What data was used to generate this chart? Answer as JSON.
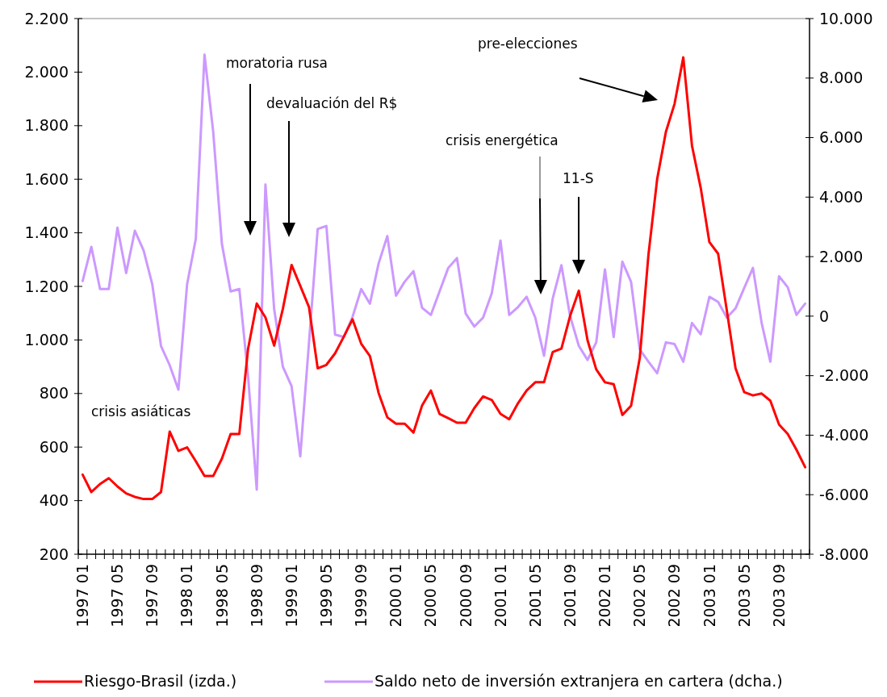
{
  "chart_data": {
    "type": "line",
    "categories": [
      "1997 01",
      null,
      null,
      null,
      "1997 05",
      null,
      null,
      null,
      "1997 09",
      null,
      null,
      null,
      "1998 01",
      null,
      null,
      null,
      "1998 05",
      null,
      null,
      null,
      "1998 09",
      null,
      null,
      null,
      "1999 01",
      null,
      null,
      null,
      "1999 05",
      null,
      null,
      null,
      "1999 09",
      null,
      null,
      null,
      "2000 01",
      null,
      null,
      null,
      "2000 05",
      null,
      null,
      null,
      "2000 09",
      null,
      null,
      null,
      "2001 01",
      null,
      null,
      null,
      "2001 05",
      null,
      null,
      null,
      "2001 09",
      null,
      null,
      null,
      "2002 01",
      null,
      null,
      null,
      "2002 05",
      null,
      null,
      null,
      "2002 09",
      null,
      null,
      null,
      "2003 01",
      null,
      null,
      null,
      "2003 05",
      null,
      null,
      null,
      "2003 09",
      null,
      null,
      null
    ],
    "series": [
      {
        "name": "Riesgo-Brasil (izda.)",
        "color": "#ff0000",
        "values": [
          497,
          432,
          462,
          484,
          453,
          427,
          414,
          406,
          406,
          432,
          658,
          586,
          599,
          547,
          492,
          492,
          557,
          649,
          649,
          966,
          1136,
          1084,
          979,
          1116,
          1280,
          1202,
          1123,
          894,
          907,
          950,
          1012,
          1077,
          986,
          940,
          802,
          711,
          687,
          687,
          654,
          756,
          811,
          724,
          708,
          691,
          691,
          746,
          789,
          776,
          724,
          704,
          763,
          811,
          842,
          842,
          955,
          968,
          1090,
          1184,
          999,
          890,
          842,
          835,
          720,
          754,
          933,
          1319,
          1601,
          1777,
          1882,
          2055,
          1725,
          1568,
          1365,
          1322,
          1110,
          894,
          805,
          793,
          800,
          773,
          684,
          649,
          590,
          525
        ]
      },
      {
        "name": "Saldo neto de inversión extranjera en cartera (dcha.)",
        "color": "#cc99ff",
        "axis": "y2",
        "values": [
          1180,
          2330,
          910,
          910,
          2970,
          1450,
          2870,
          2210,
          1070,
          -1000,
          -1650,
          -2470,
          1070,
          2600,
          8790,
          6190,
          2420,
          830,
          910,
          -2000,
          -5830,
          4420,
          240,
          -1700,
          -2350,
          -4710,
          -900,
          2930,
          3030,
          -620,
          -700,
          -30,
          910,
          420,
          1770,
          2690,
          690,
          1160,
          1510,
          280,
          40,
          830,
          1620,
          1950,
          90,
          -350,
          -50,
          770,
          2540,
          40,
          300,
          650,
          -50,
          -1330,
          590,
          1710,
          0,
          -1000,
          -1470,
          -880,
          1570,
          -700,
          1830,
          1150,
          -1120,
          -1530,
          -1920,
          -880,
          -940,
          -1530,
          -230,
          -610,
          650,
          480,
          -50,
          260,
          950,
          1620,
          -230,
          -1530,
          1340,
          970,
          40,
          420
        ]
      }
    ],
    "ylim": [
      200,
      2200
    ],
    "yticks": [
      200,
      400,
      600,
      800,
      {
        "value": 1000,
        "label": "1.000"
      },
      {
        "value": 1200,
        "label": "1.200"
      },
      {
        "value": 1400,
        "label": "1.400"
      },
      {
        "value": 1600,
        "label": "1.600"
      },
      {
        "value": 1800,
        "label": "1.800"
      },
      {
        "value": 2000,
        "label": "2.000"
      },
      {
        "value": 2200,
        "label": "2.200"
      }
    ],
    "y2lim": [
      -8000,
      10000
    ],
    "y2ticks": [
      {
        "value": -8000,
        "label": "-8.000"
      },
      {
        "value": -6000,
        "label": "-6.000"
      },
      {
        "value": -4000,
        "label": "-4.000"
      },
      {
        "value": -2000,
        "label": "-2.000"
      },
      0,
      {
        "value": 2000,
        "label": "2.000"
      },
      {
        "value": 4000,
        "label": "4.000"
      },
      {
        "value": 6000,
        "label": "6.000"
      },
      {
        "value": 8000,
        "label": "8.000"
      },
      {
        "value": 10000,
        "label": "10.000"
      }
    ],
    "annotations": [
      "crisis asiáticas",
      "moratoria rusa",
      "devaluación del R$",
      "crisis energética",
      "11-S",
      "pre-elecciones"
    ],
    "legend": "bottom",
    "grid": false,
    "marker": "none",
    "line_style": "solid"
  }
}
